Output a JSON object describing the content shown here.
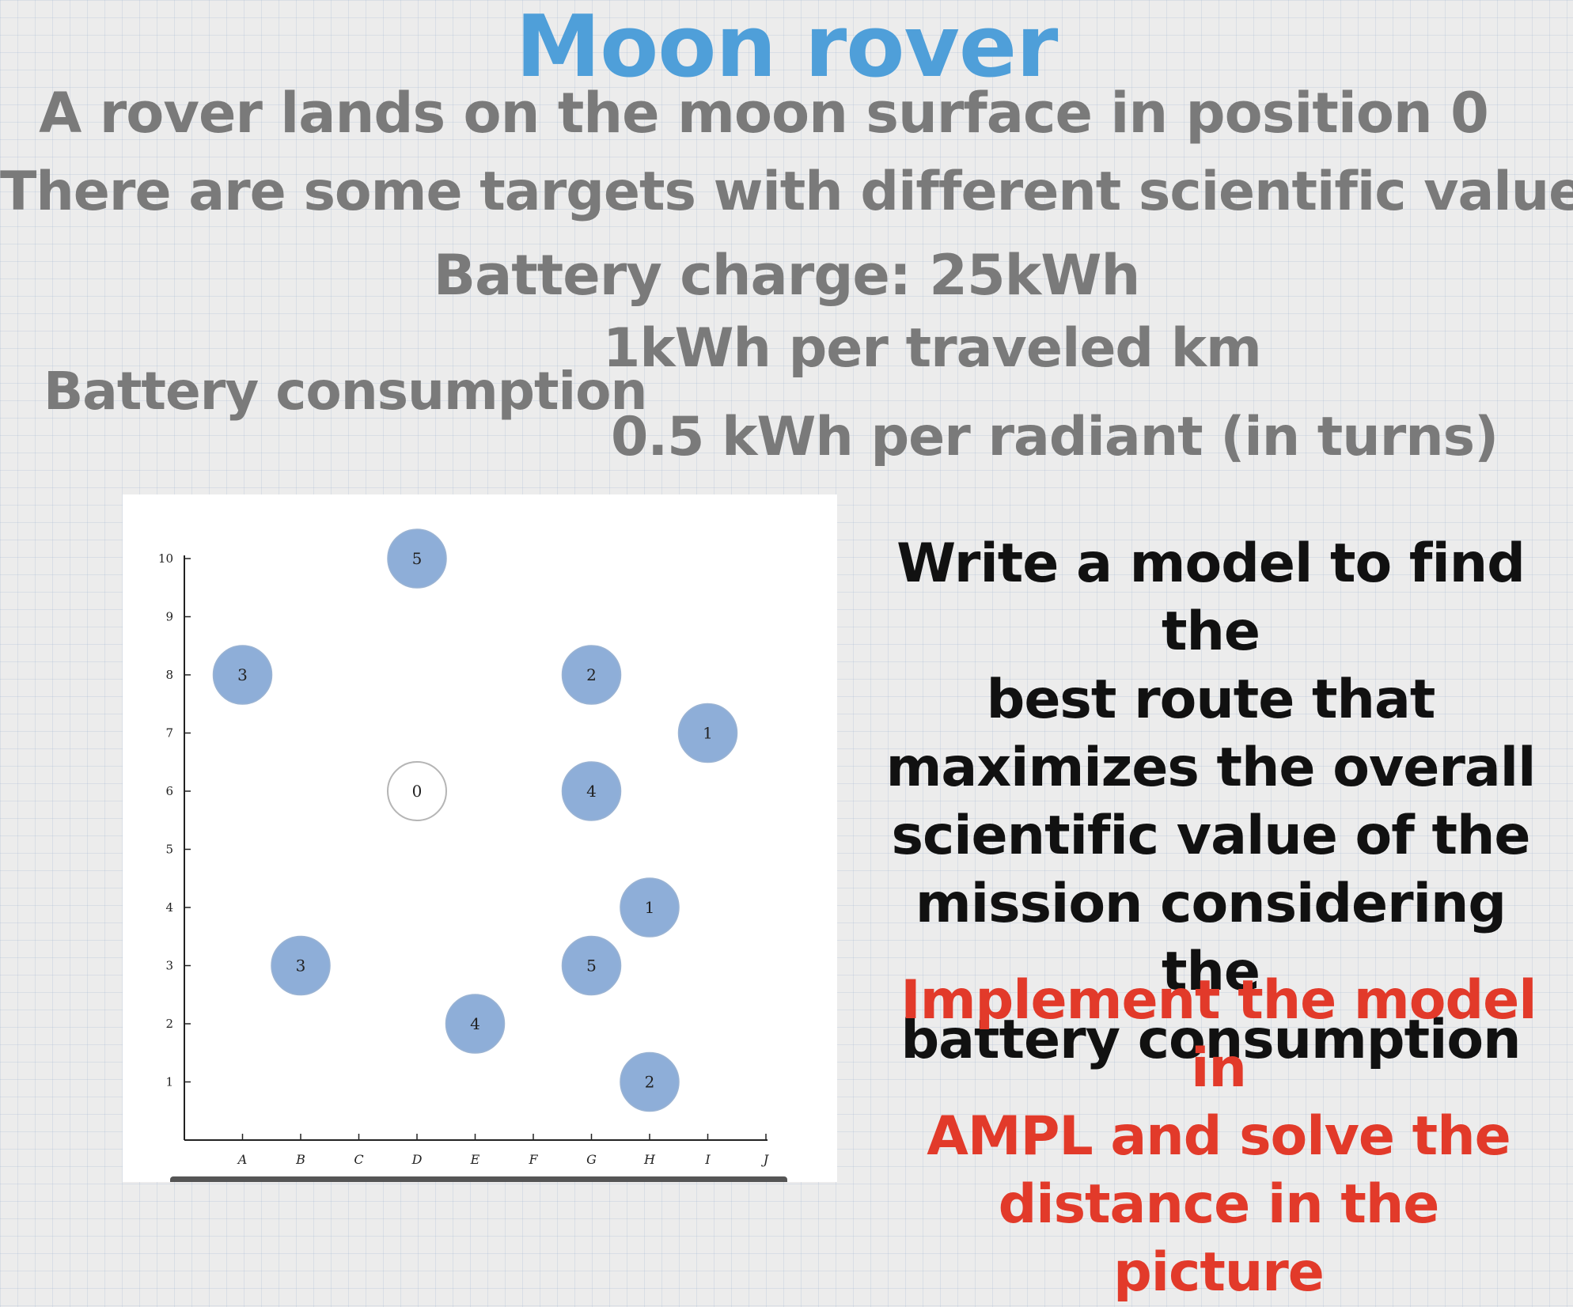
{
  "title": "Moon rover",
  "description": {
    "line1": "A rover lands on the moon surface in position 0",
    "line2": "There are some targets with different scientific values",
    "line3": "Battery charge: 25kWh"
  },
  "consumption": {
    "label": "Battery consumption",
    "per_km": "1kWh per traveled  km",
    "per_radiant": "0.5 kWh per radiant (in turns)"
  },
  "task": {
    "lines": [
      "Write a model to find the",
      "best route that",
      "maximizes the overall",
      "scientific value of the",
      "mission considering the",
      "battery consumption"
    ]
  },
  "implement": {
    "lines": [
      "Implement the model in",
      "AMPL and solve the",
      "distance in the picture"
    ]
  },
  "colors": {
    "title": "#4f9fd9",
    "description": "#7a7a7a",
    "task": "#111111",
    "implement": "#e23a2a",
    "target_fill": "#8eaed8",
    "start_fill": "#ffffff"
  },
  "chart_data": {
    "type": "scatter",
    "x_categories": [
      "A",
      "B",
      "C",
      "D",
      "E",
      "F",
      "G",
      "H",
      "I",
      "J"
    ],
    "y_ticks": [
      1,
      2,
      3,
      4,
      5,
      6,
      7,
      8,
      9,
      10
    ],
    "xlim": [
      "A",
      "J"
    ],
    "ylim": [
      0,
      10
    ],
    "grid": false,
    "points": [
      {
        "x": "D",
        "y": 10,
        "value": 5,
        "start": false
      },
      {
        "x": "A",
        "y": 8,
        "value": 3,
        "start": false
      },
      {
        "x": "G",
        "y": 8,
        "value": 2,
        "start": false
      },
      {
        "x": "I",
        "y": 7,
        "value": 1,
        "start": false
      },
      {
        "x": "D",
        "y": 6,
        "value": 0,
        "start": true
      },
      {
        "x": "G",
        "y": 6,
        "value": 4,
        "start": false
      },
      {
        "x": "H",
        "y": 4,
        "value": 1,
        "start": false
      },
      {
        "x": "B",
        "y": 3,
        "value": 3,
        "start": false
      },
      {
        "x": "G",
        "y": 3,
        "value": 5,
        "start": false
      },
      {
        "x": "E",
        "y": 2,
        "value": 4,
        "start": false
      },
      {
        "x": "H",
        "y": 1,
        "value": 2,
        "start": false
      }
    ]
  }
}
